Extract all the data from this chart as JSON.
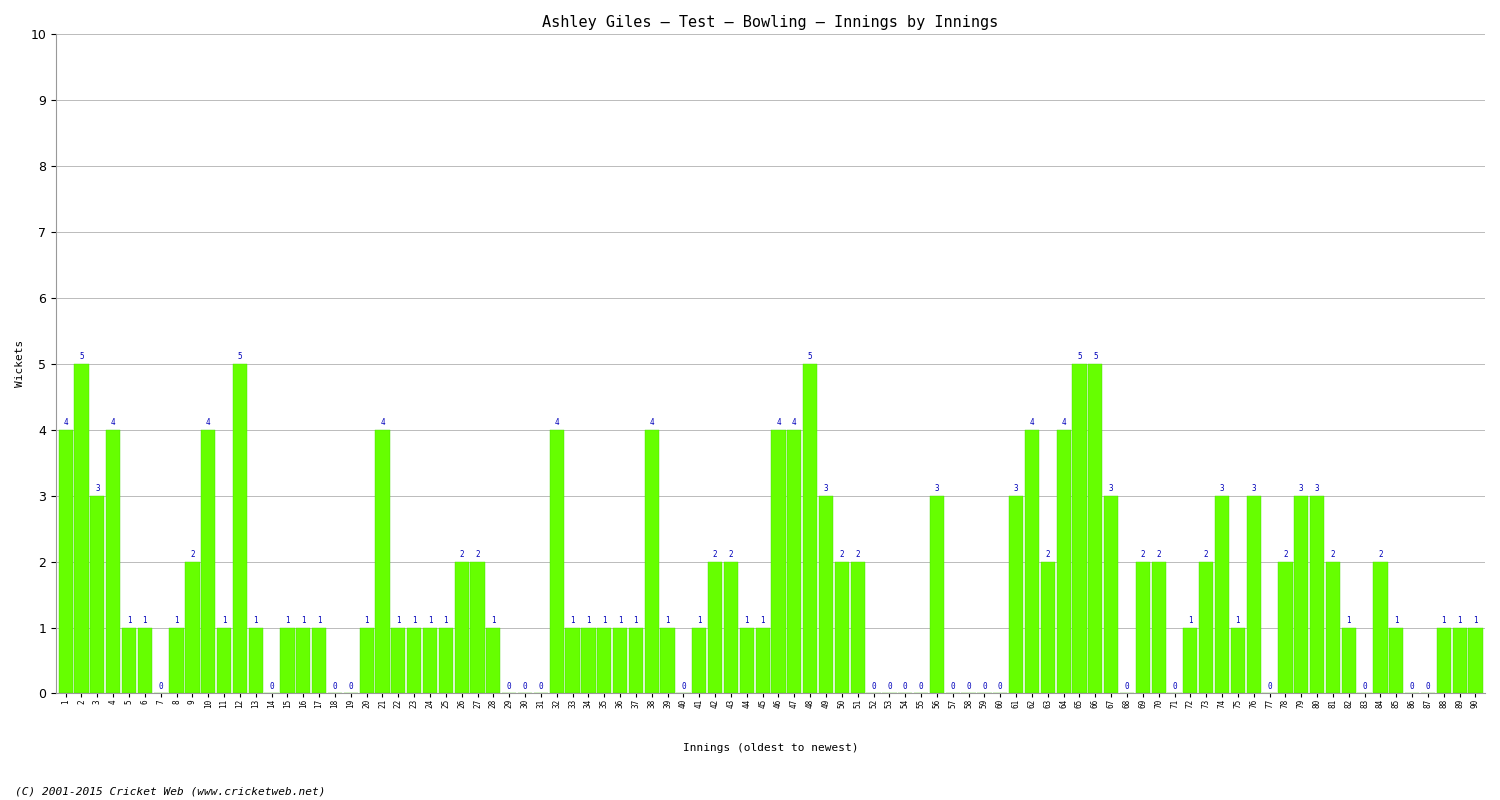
{
  "title": "Ashley Giles – Test – Bowling – Innings by Innings",
  "xlabel": "Innings (oldest to newest)",
  "ylabel": "Wickets",
  "bar_color": "#66ff00",
  "bar_edge_color": "#44dd00",
  "background_color": "#ffffff",
  "grid_color": "#bbbbbb",
  "label_color": "#0000bb",
  "footer": "(C) 2001-2015 Cricket Web (www.cricketweb.net)",
  "ylim": [
    0,
    10
  ],
  "yticks": [
    0,
    1,
    2,
    3,
    4,
    5,
    6,
    7,
    8,
    9,
    10
  ],
  "wickets": [
    4,
    5,
    3,
    4,
    1,
    1,
    0,
    1,
    2,
    4,
    1,
    5,
    1,
    0,
    1,
    1,
    1,
    0,
    0,
    1,
    4,
    1,
    1,
    1,
    1,
    2,
    2,
    1,
    0,
    0,
    0,
    4,
    1,
    1,
    1,
    1,
    1,
    4,
    1,
    0,
    1,
    2,
    2,
    1,
    1,
    4,
    4,
    5,
    3,
    2,
    2,
    0,
    0,
    0,
    0,
    3,
    0,
    0,
    0,
    0,
    3,
    4,
    2,
    4,
    5,
    5,
    3,
    0,
    2,
    2,
    0,
    1,
    2,
    3,
    1,
    3,
    0,
    2,
    3,
    3,
    2,
    1,
    0,
    2,
    1,
    0,
    0,
    1,
    1,
    1
  ]
}
